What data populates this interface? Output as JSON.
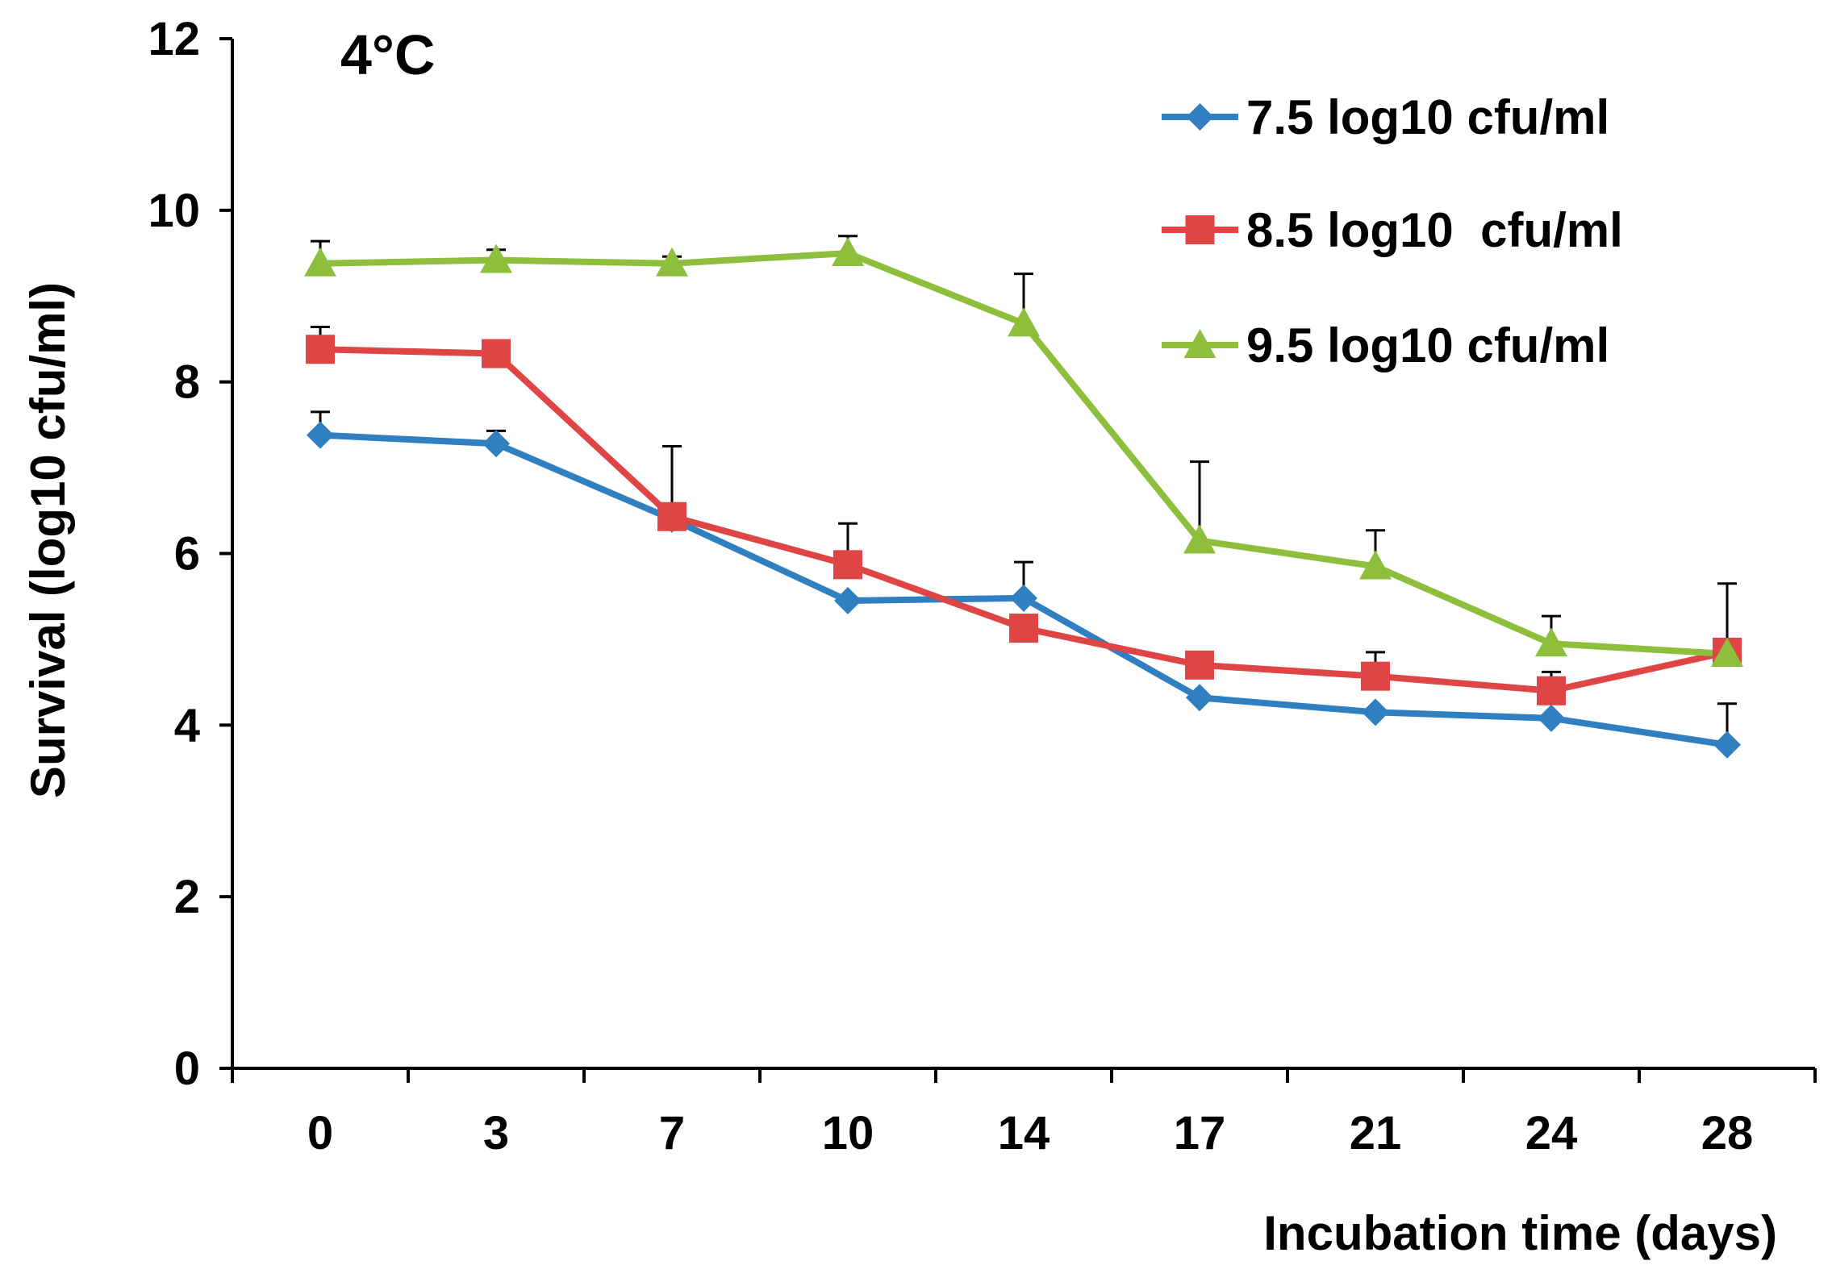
{
  "chart_data": {
    "type": "line",
    "title": "",
    "annotation": "4°C",
    "xlabel": "Incubation time (days)",
    "ylabel": "Survival (log10 cfu/ml)",
    "categories": [
      "0",
      "3",
      "7",
      "10",
      "14",
      "17",
      "21",
      "24",
      "28"
    ],
    "ylim": [
      0,
      12
    ],
    "yticks": [
      "0",
      "2",
      "4",
      "6",
      "8",
      "10",
      "12"
    ],
    "grid": false,
    "legend_position": "top-right",
    "series": [
      {
        "name": "7.5 log10 cfu/ml",
        "color": "#2f7fc1",
        "marker": "diamond",
        "values": [
          7.38,
          7.28,
          6.4,
          5.45,
          5.48,
          4.32,
          4.15,
          4.08,
          3.77
        ],
        "errors": [
          0.27,
          0.15,
          0.0,
          0.0,
          0.42,
          0.0,
          0.0,
          0.0,
          0.48
        ]
      },
      {
        "name": "8.5 log10  cfu/ml",
        "color": "#e04545",
        "marker": "square",
        "values": [
          8.38,
          8.33,
          6.43,
          5.87,
          5.13,
          4.7,
          4.57,
          4.4,
          4.85
        ],
        "errors": [
          0.26,
          0.0,
          0.82,
          0.48,
          0.0,
          0.0,
          0.28,
          0.22,
          0.8
        ]
      },
      {
        "name": "9.5 log10 cfu/ml",
        "color": "#8dbf3d",
        "marker": "triangle",
        "values": [
          9.38,
          9.42,
          9.38,
          9.5,
          8.68,
          6.15,
          5.85,
          4.95,
          4.83
        ],
        "errors": [
          0.26,
          0.12,
          0.08,
          0.2,
          0.58,
          0.92,
          0.42,
          0.32,
          0.0
        ]
      }
    ]
  }
}
